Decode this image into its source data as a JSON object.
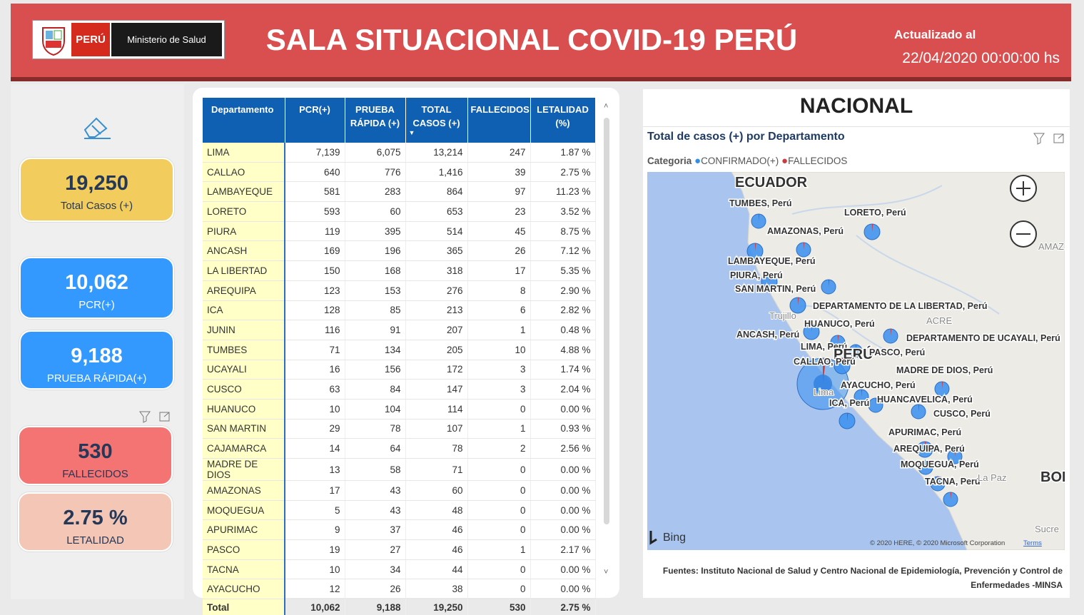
{
  "header": {
    "logo_country": "PERÚ",
    "logo_ministry": "Ministerio de Salud",
    "title": "SALA SITUACIONAL COVID-19 PERÚ",
    "updated_label": "Actualizado al",
    "updated_value": "22/04/2020 00:00:00 hs"
  },
  "kpis": [
    {
      "value": "19,250",
      "label": "Total Casos (+)"
    },
    {
      "value": "10,062",
      "label": "PCR(+)"
    },
    {
      "value": "9,188",
      "label": "PRUEBA RÁPIDA(+)"
    },
    {
      "value": "530",
      "label": "FALLECIDOS"
    },
    {
      "value": "2.75 %",
      "label": "LETALIDAD"
    }
  ],
  "table": {
    "columns": [
      "Departamento",
      "PCR(+)",
      "PRUEBA RÁPIDA (+)",
      "TOTAL CASOS (+)",
      "FALLECIDOS",
      "LETALIDAD (%)"
    ],
    "rows": [
      [
        "LIMA",
        "7,139",
        "6,075",
        "13,214",
        "247",
        "1.87 %"
      ],
      [
        "CALLAO",
        "640",
        "776",
        "1,416",
        "39",
        "2.75 %"
      ],
      [
        "LAMBAYEQUE",
        "581",
        "283",
        "864",
        "97",
        "11.23 %"
      ],
      [
        "LORETO",
        "593",
        "60",
        "653",
        "23",
        "3.52 %"
      ],
      [
        "PIURA",
        "119",
        "395",
        "514",
        "45",
        "8.75 %"
      ],
      [
        "ANCASH",
        "169",
        "196",
        "365",
        "26",
        "7.12 %"
      ],
      [
        "LA LIBERTAD",
        "150",
        "168",
        "318",
        "17",
        "5.35 %"
      ],
      [
        "AREQUIPA",
        "123",
        "153",
        "276",
        "8",
        "2.90 %"
      ],
      [
        "ICA",
        "128",
        "85",
        "213",
        "6",
        "2.82 %"
      ],
      [
        "JUNIN",
        "116",
        "91",
        "207",
        "1",
        "0.48 %"
      ],
      [
        "TUMBES",
        "71",
        "134",
        "205",
        "10",
        "4.88 %"
      ],
      [
        "UCAYALI",
        "16",
        "156",
        "172",
        "3",
        "1.74 %"
      ],
      [
        "CUSCO",
        "63",
        "84",
        "147",
        "3",
        "2.04 %"
      ],
      [
        "HUANUCO",
        "10",
        "104",
        "114",
        "0",
        "0.00 %"
      ],
      [
        "SAN MARTIN",
        "29",
        "78",
        "107",
        "1",
        "0.93 %"
      ],
      [
        "CAJAMARCA",
        "14",
        "64",
        "78",
        "2",
        "2.56 %"
      ],
      [
        "MADRE DE DIOS",
        "13",
        "58",
        "71",
        "0",
        "0.00 %"
      ],
      [
        "AMAZONAS",
        "17",
        "43",
        "60",
        "0",
        "0.00 %"
      ],
      [
        "MOQUEGUA",
        "5",
        "43",
        "48",
        "0",
        "0.00 %"
      ],
      [
        "APURIMAC",
        "9",
        "37",
        "46",
        "0",
        "0.00 %"
      ],
      [
        "PASCO",
        "19",
        "27",
        "46",
        "1",
        "2.17 %"
      ],
      [
        "TACNA",
        "10",
        "34",
        "44",
        "0",
        "0.00 %"
      ],
      [
        "AYACUCHO",
        "12",
        "26",
        "38",
        "0",
        "0.00 %"
      ]
    ],
    "total": [
      "Total",
      "10,062",
      "9,188",
      "19,250",
      "530",
      "2.75 %"
    ]
  },
  "map": {
    "heading": "NACIONAL",
    "title": "Total de casos (+) por Departamento",
    "legend_title": "Categoria",
    "legend": [
      "CONFIRMADO(+)",
      "FALLECIDOS"
    ],
    "labels": [
      "ECUADOR",
      "TUMBES, Perú",
      "LORETO, Perú",
      "AMAZONAS, Perú",
      "LAMBAYEQUE, Perú",
      "PIURA, Perú",
      "SAN MARTIN, Perú",
      "Trujillo",
      "DEPARTAMENTO DE LA LIBERTAD, Perú",
      "HUANUCO, Perú",
      "ACRE",
      "ANCASH, Perú",
      "DEPARTAMENTO DE UCAYALI, Perú",
      "LIMA, Perú",
      "PERÚ",
      "PASCO, Perú",
      "CALLAO, Perú",
      "MADRE DE DIOS, Perú",
      "AYACUCHO, Perú",
      "HUANCAVELICA, Perú",
      "ICA, Perú",
      "CUSCO, Perú",
      "APURIMAC, Perú",
      "AREQUIPA, Perú",
      "MOQUEGUA, Perú",
      "TACNA, Perú",
      "La Paz",
      "BOL",
      "AMAZ",
      "Sucre",
      "Lima"
    ],
    "bing": "Bing",
    "copyright": "© 2020 HERE, © 2020 Microsoft Corporation",
    "terms": "Terms"
  },
  "footer": {
    "source": "Fuentes: Instituto Nacional de Salud y Centro Nacional de Epidemiología, Prevención y Control de Enfermedades -MINSA"
  }
}
